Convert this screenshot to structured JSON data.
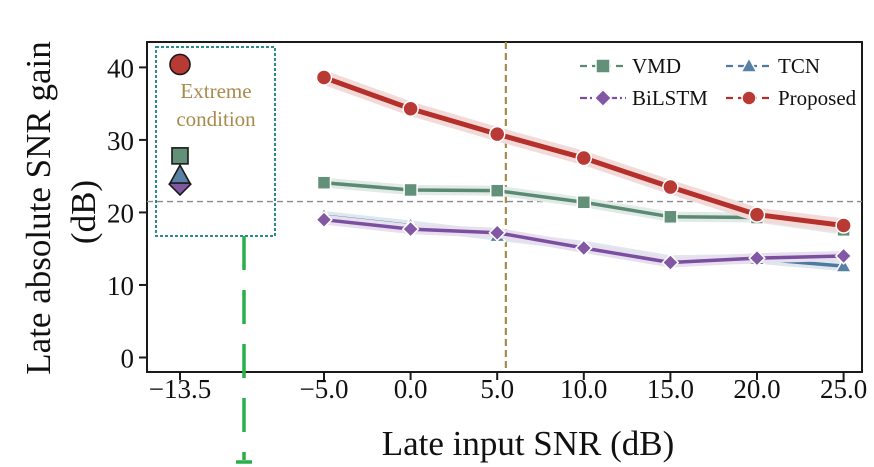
{
  "chart_data": {
    "type": "line",
    "xlabel": "Late input SNR (dB)",
    "ylabel_line1": "Late absolute SNR gain",
    "ylabel_line2": "(dB)",
    "x_tick_labels": [
      "−13.5",
      "−5.0",
      "0.0",
      "5.0",
      "10.0",
      "15.0",
      "20.0",
      "25.0"
    ],
    "y_ticks": [
      0,
      10,
      20,
      30,
      40
    ],
    "ylim": [
      -2,
      43.5
    ],
    "x": [
      -5,
      0,
      5,
      10,
      15,
      20,
      25
    ],
    "grid": false,
    "legend_position": "top-right",
    "series": [
      {
        "name": "VMD",
        "marker": "square",
        "line": "solid",
        "legend_line": "dashed",
        "color": "#5b8a72",
        "values": [
          24.1,
          23.1,
          23.0,
          21.4,
          19.4,
          19.3,
          17.6
        ]
      },
      {
        "name": "TCN",
        "marker": "triangle",
        "line": "solid",
        "legend_line": "dashed",
        "color": "#4f7aa0",
        "values": [
          19.5,
          18.2,
          16.8,
          15.4,
          13.4,
          13.6,
          12.6
        ]
      },
      {
        "name": "BiLSTM",
        "marker": "diamond",
        "line": "solid",
        "legend_line": "dashdot",
        "color": "#7b4fa0",
        "values": [
          19.0,
          17.7,
          17.2,
          15.1,
          13.1,
          13.7,
          14.0
        ]
      },
      {
        "name": "Proposed",
        "marker": "circle",
        "line": "solid",
        "legend_line": "dashed",
        "color": "#b5302a",
        "values": [
          38.6,
          34.3,
          30.8,
          27.5,
          23.5,
          19.7,
          18.2
        ]
      }
    ],
    "extreme_condition": {
      "x_label": "−13.5",
      "label_line1": "Extreme",
      "label_line2": "condition",
      "values": {
        "Proposed": 40.4,
        "VMD": 27.8,
        "TCN": 25.1,
        "BiLSTM": 23.9
      }
    },
    "reference_lines": {
      "horizontal_y": 21.5,
      "vertical_x": 5.5
    }
  }
}
